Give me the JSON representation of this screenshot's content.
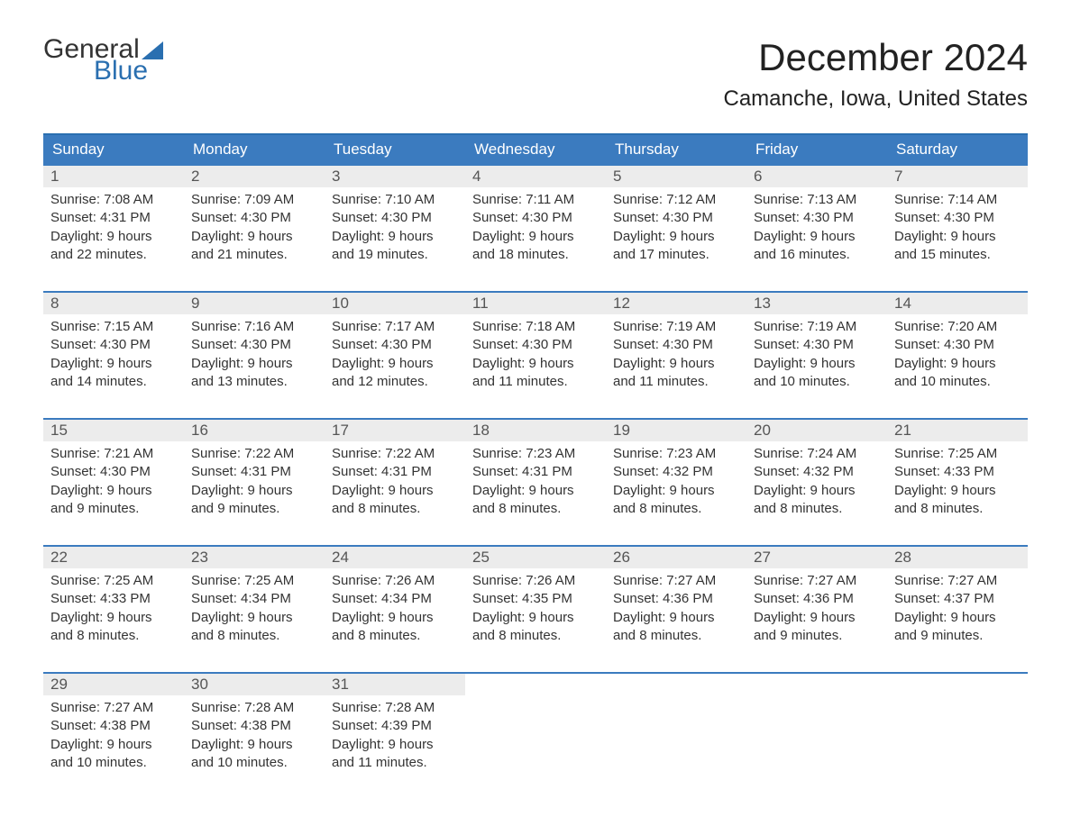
{
  "logo": {
    "word1": "General",
    "word2": "Blue"
  },
  "title": "December 2024",
  "location": "Camanche, Iowa, United States",
  "colors": {
    "header_bg": "#3b7bbf",
    "header_text": "#ffffff",
    "row_border": "#3b7bbf",
    "daynum_bg": "#ececec",
    "brand_blue": "#2a6fb0",
    "text": "#333333"
  },
  "columns": [
    "Sunday",
    "Monday",
    "Tuesday",
    "Wednesday",
    "Thursday",
    "Friday",
    "Saturday"
  ],
  "weeks": [
    [
      {
        "day": "1",
        "sunrise": "Sunrise: 7:08 AM",
        "sunset": "Sunset: 4:31 PM",
        "daylight1": "Daylight: 9 hours",
        "daylight2": "and 22 minutes."
      },
      {
        "day": "2",
        "sunrise": "Sunrise: 7:09 AM",
        "sunset": "Sunset: 4:30 PM",
        "daylight1": "Daylight: 9 hours",
        "daylight2": "and 21 minutes."
      },
      {
        "day": "3",
        "sunrise": "Sunrise: 7:10 AM",
        "sunset": "Sunset: 4:30 PM",
        "daylight1": "Daylight: 9 hours",
        "daylight2": "and 19 minutes."
      },
      {
        "day": "4",
        "sunrise": "Sunrise: 7:11 AM",
        "sunset": "Sunset: 4:30 PM",
        "daylight1": "Daylight: 9 hours",
        "daylight2": "and 18 minutes."
      },
      {
        "day": "5",
        "sunrise": "Sunrise: 7:12 AM",
        "sunset": "Sunset: 4:30 PM",
        "daylight1": "Daylight: 9 hours",
        "daylight2": "and 17 minutes."
      },
      {
        "day": "6",
        "sunrise": "Sunrise: 7:13 AM",
        "sunset": "Sunset: 4:30 PM",
        "daylight1": "Daylight: 9 hours",
        "daylight2": "and 16 minutes."
      },
      {
        "day": "7",
        "sunrise": "Sunrise: 7:14 AM",
        "sunset": "Sunset: 4:30 PM",
        "daylight1": "Daylight: 9 hours",
        "daylight2": "and 15 minutes."
      }
    ],
    [
      {
        "day": "8",
        "sunrise": "Sunrise: 7:15 AM",
        "sunset": "Sunset: 4:30 PM",
        "daylight1": "Daylight: 9 hours",
        "daylight2": "and 14 minutes."
      },
      {
        "day": "9",
        "sunrise": "Sunrise: 7:16 AM",
        "sunset": "Sunset: 4:30 PM",
        "daylight1": "Daylight: 9 hours",
        "daylight2": "and 13 minutes."
      },
      {
        "day": "10",
        "sunrise": "Sunrise: 7:17 AM",
        "sunset": "Sunset: 4:30 PM",
        "daylight1": "Daylight: 9 hours",
        "daylight2": "and 12 minutes."
      },
      {
        "day": "11",
        "sunrise": "Sunrise: 7:18 AM",
        "sunset": "Sunset: 4:30 PM",
        "daylight1": "Daylight: 9 hours",
        "daylight2": "and 11 minutes."
      },
      {
        "day": "12",
        "sunrise": "Sunrise: 7:19 AM",
        "sunset": "Sunset: 4:30 PM",
        "daylight1": "Daylight: 9 hours",
        "daylight2": "and 11 minutes."
      },
      {
        "day": "13",
        "sunrise": "Sunrise: 7:19 AM",
        "sunset": "Sunset: 4:30 PM",
        "daylight1": "Daylight: 9 hours",
        "daylight2": "and 10 minutes."
      },
      {
        "day": "14",
        "sunrise": "Sunrise: 7:20 AM",
        "sunset": "Sunset: 4:30 PM",
        "daylight1": "Daylight: 9 hours",
        "daylight2": "and 10 minutes."
      }
    ],
    [
      {
        "day": "15",
        "sunrise": "Sunrise: 7:21 AM",
        "sunset": "Sunset: 4:30 PM",
        "daylight1": "Daylight: 9 hours",
        "daylight2": "and 9 minutes."
      },
      {
        "day": "16",
        "sunrise": "Sunrise: 7:22 AM",
        "sunset": "Sunset: 4:31 PM",
        "daylight1": "Daylight: 9 hours",
        "daylight2": "and 9 minutes."
      },
      {
        "day": "17",
        "sunrise": "Sunrise: 7:22 AM",
        "sunset": "Sunset: 4:31 PM",
        "daylight1": "Daylight: 9 hours",
        "daylight2": "and 8 minutes."
      },
      {
        "day": "18",
        "sunrise": "Sunrise: 7:23 AM",
        "sunset": "Sunset: 4:31 PM",
        "daylight1": "Daylight: 9 hours",
        "daylight2": "and 8 minutes."
      },
      {
        "day": "19",
        "sunrise": "Sunrise: 7:23 AM",
        "sunset": "Sunset: 4:32 PM",
        "daylight1": "Daylight: 9 hours",
        "daylight2": "and 8 minutes."
      },
      {
        "day": "20",
        "sunrise": "Sunrise: 7:24 AM",
        "sunset": "Sunset: 4:32 PM",
        "daylight1": "Daylight: 9 hours",
        "daylight2": "and 8 minutes."
      },
      {
        "day": "21",
        "sunrise": "Sunrise: 7:25 AM",
        "sunset": "Sunset: 4:33 PM",
        "daylight1": "Daylight: 9 hours",
        "daylight2": "and 8 minutes."
      }
    ],
    [
      {
        "day": "22",
        "sunrise": "Sunrise: 7:25 AM",
        "sunset": "Sunset: 4:33 PM",
        "daylight1": "Daylight: 9 hours",
        "daylight2": "and 8 minutes."
      },
      {
        "day": "23",
        "sunrise": "Sunrise: 7:25 AM",
        "sunset": "Sunset: 4:34 PM",
        "daylight1": "Daylight: 9 hours",
        "daylight2": "and 8 minutes."
      },
      {
        "day": "24",
        "sunrise": "Sunrise: 7:26 AM",
        "sunset": "Sunset: 4:34 PM",
        "daylight1": "Daylight: 9 hours",
        "daylight2": "and 8 minutes."
      },
      {
        "day": "25",
        "sunrise": "Sunrise: 7:26 AM",
        "sunset": "Sunset: 4:35 PM",
        "daylight1": "Daylight: 9 hours",
        "daylight2": "and 8 minutes."
      },
      {
        "day": "26",
        "sunrise": "Sunrise: 7:27 AM",
        "sunset": "Sunset: 4:36 PM",
        "daylight1": "Daylight: 9 hours",
        "daylight2": "and 8 minutes."
      },
      {
        "day": "27",
        "sunrise": "Sunrise: 7:27 AM",
        "sunset": "Sunset: 4:36 PM",
        "daylight1": "Daylight: 9 hours",
        "daylight2": "and 9 minutes."
      },
      {
        "day": "28",
        "sunrise": "Sunrise: 7:27 AM",
        "sunset": "Sunset: 4:37 PM",
        "daylight1": "Daylight: 9 hours",
        "daylight2": "and 9 minutes."
      }
    ],
    [
      {
        "day": "29",
        "sunrise": "Sunrise: 7:27 AM",
        "sunset": "Sunset: 4:38 PM",
        "daylight1": "Daylight: 9 hours",
        "daylight2": "and 10 minutes."
      },
      {
        "day": "30",
        "sunrise": "Sunrise: 7:28 AM",
        "sunset": "Sunset: 4:38 PM",
        "daylight1": "Daylight: 9 hours",
        "daylight2": "and 10 minutes."
      },
      {
        "day": "31",
        "sunrise": "Sunrise: 7:28 AM",
        "sunset": "Sunset: 4:39 PM",
        "daylight1": "Daylight: 9 hours",
        "daylight2": "and 11 minutes."
      },
      null,
      null,
      null,
      null
    ]
  ]
}
